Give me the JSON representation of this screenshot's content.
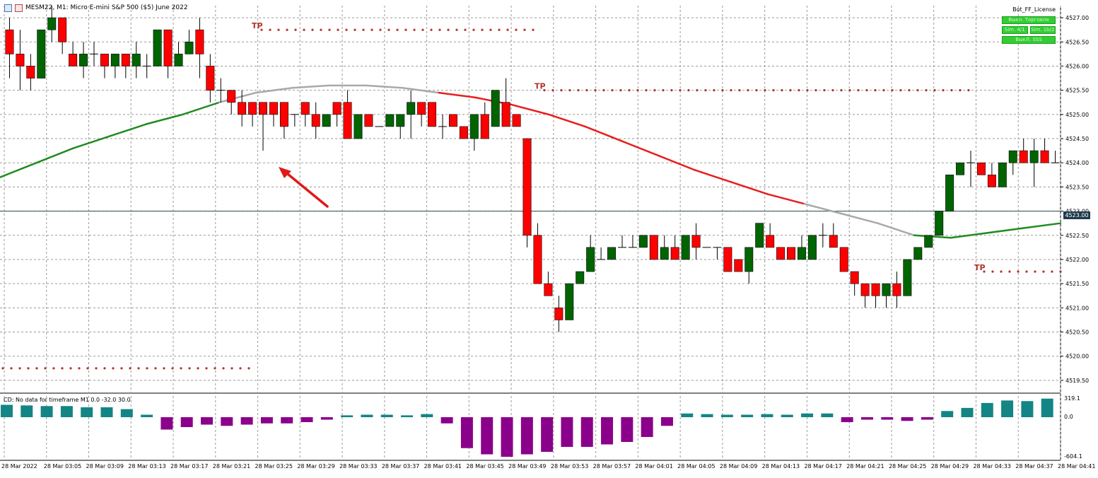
{
  "window": {
    "title": "MESM22, M1:  Micro E-mini S&P 500 ($5) June 2022"
  },
  "panel": {
    "title": "Bot_FF_License",
    "btn_trade": "Выкл. Торговля",
    "btn_a": "Sim. 4/1",
    "btn_b": "Sim. 1b/2",
    "btn_sss": "ВыкЛ. SSS"
  },
  "indicator": {
    "label": "CD: No data for timeframe M1 0.0 -32.0 30.0",
    "scale_top": "319.1",
    "scale_zero": "0.0",
    "scale_bottom": "-604.1"
  },
  "current_price": "4523.00",
  "annotations": {
    "tp": "TP"
  },
  "colors": {
    "bull": "#006400",
    "bear": "#ff0000",
    "ma_green": "#228b22",
    "ma_red": "#e81e1e",
    "ma_gray": "#a9a9a9",
    "hist_pos": "#138585",
    "hist_neg": "#8b008b",
    "grid": "#9a9a9a"
  },
  "chart_data": {
    "type": "candlestick",
    "symbol": "MESM22",
    "timeframe": "M1",
    "ylim": [
      4519.25,
      4527.25
    ],
    "price_ticks": [
      "4527.00",
      "4526.50",
      "4526.00",
      "4525.50",
      "4525.00",
      "4524.50",
      "4524.00",
      "4523.50",
      "4523.00",
      "4522.50",
      "4522.00",
      "4521.50",
      "4521.00",
      "4520.50",
      "4520.00",
      "4519.50"
    ],
    "time_ticks": [
      "28 Mar 2022",
      "28 Mar 03:05",
      "28 Mar 03:09",
      "28 Mar 03:13",
      "28 Mar 03:17",
      "28 Mar 03:21",
      "28 Mar 03:25",
      "28 Mar 03:29",
      "28 Mar 03:33",
      "28 Mar 03:37",
      "28 Mar 03:41",
      "28 Mar 03:45",
      "28 Mar 03:49",
      "28 Mar 03:53",
      "28 Mar 03:57",
      "28 Mar 04:01",
      "28 Mar 04:05",
      "28 Mar 04:09",
      "28 Mar 04:13",
      "28 Mar 04:17",
      "28 Mar 04:21",
      "28 Mar 04:25",
      "28 Mar 04:29",
      "28 Mar 04:33",
      "28 Mar 04:37",
      "28 Mar 04:41"
    ],
    "candles": [
      [
        4526.75,
        4527.0,
        4525.75,
        4526.25
      ],
      [
        4526.25,
        4526.75,
        4525.5,
        4526.0
      ],
      [
        4526.0,
        4526.25,
        4525.5,
        4525.75
      ],
      [
        4525.75,
        4526.75,
        4525.75,
        4526.75
      ],
      [
        4526.75,
        4527.25,
        4526.5,
        4527.0
      ],
      [
        4527.0,
        4527.0,
        4526.25,
        4526.5
      ],
      [
        4526.25,
        4526.5,
        4526.0,
        4526.0
      ],
      [
        4526.0,
        4526.5,
        4525.75,
        4526.25
      ],
      [
        4526.25,
        4526.5,
        4526.0,
        4526.25
      ],
      [
        4526.25,
        4526.25,
        4525.75,
        4526.0
      ],
      [
        4526.0,
        4526.25,
        4525.75,
        4526.25
      ],
      [
        4526.25,
        4526.25,
        4525.75,
        4526.0
      ],
      [
        4526.0,
        4526.5,
        4525.75,
        4526.25
      ],
      [
        4526.0,
        4526.25,
        4525.75,
        4526.0
      ],
      [
        4526.0,
        4526.75,
        4526.0,
        4526.75
      ],
      [
        4526.75,
        4526.75,
        4525.75,
        4526.0
      ],
      [
        4526.0,
        4526.5,
        4526.0,
        4526.25
      ],
      [
        4526.25,
        4526.75,
        4526.25,
        4526.5
      ],
      [
        4526.75,
        4527.0,
        4525.75,
        4526.25
      ],
      [
        4526.0,
        4526.25,
        4525.25,
        4525.5
      ],
      [
        4525.5,
        4525.75,
        4525.25,
        4525.5
      ],
      [
        4525.5,
        4525.5,
        4525.0,
        4525.25
      ],
      [
        4525.25,
        4525.5,
        4524.75,
        4525.0
      ],
      [
        4525.25,
        4525.25,
        4524.75,
        4525.0
      ],
      [
        4525.25,
        4525.25,
        4524.25,
        4525.0
      ],
      [
        4525.25,
        4525.25,
        4524.75,
        4525.0
      ],
      [
        4525.25,
        4525.25,
        4524.5,
        4524.75
      ],
      [
        4525.0,
        4525.0,
        4524.75,
        4525.0
      ],
      [
        4525.25,
        4525.25,
        4524.75,
        4525.0
      ],
      [
        4525.0,
        4525.25,
        4524.5,
        4524.75
      ],
      [
        4524.75,
        4525.0,
        4524.75,
        4525.0
      ],
      [
        4525.25,
        4525.25,
        4524.75,
        4525.0
      ],
      [
        4525.25,
        4525.5,
        4524.5,
        4524.5
      ],
      [
        4524.5,
        4525.0,
        4524.5,
        4525.0
      ],
      [
        4525.0,
        4525.0,
        4524.75,
        4524.75
      ],
      [
        4524.75,
        4524.75,
        4524.75,
        4524.75
      ],
      [
        4524.75,
        4525.0,
        4524.75,
        4525.0
      ],
      [
        4524.75,
        4525.0,
        4524.5,
        4525.0
      ],
      [
        4525.0,
        4525.5,
        4524.5,
        4525.25
      ],
      [
        4525.25,
        4525.25,
        4524.75,
        4525.0
      ],
      [
        4525.25,
        4525.25,
        4524.75,
        4524.75
      ],
      [
        4524.75,
        4525.0,
        4524.5,
        4524.75
      ],
      [
        4525.0,
        4525.0,
        4524.75,
        4524.75
      ],
      [
        4524.75,
        4524.75,
        4524.5,
        4524.5
      ],
      [
        4524.5,
        4525.0,
        4524.25,
        4525.0
      ],
      [
        4525.0,
        4525.25,
        4524.5,
        4524.5
      ],
      [
        4524.75,
        4525.5,
        4524.75,
        4525.5
      ],
      [
        4525.25,
        4525.75,
        4524.75,
        4524.75
      ],
      [
        4525.0,
        4525.0,
        4524.75,
        4524.75
      ],
      [
        4524.5,
        4524.5,
        4522.25,
        4522.5
      ],
      [
        4522.5,
        4522.75,
        4521.5,
        4521.5
      ],
      [
        4521.5,
        4521.75,
        4521.25,
        4521.25
      ],
      [
        4521.0,
        4521.25,
        4520.5,
        4520.75
      ],
      [
        4520.75,
        4521.5,
        4520.75,
        4521.5
      ],
      [
        4521.5,
        4521.75,
        4521.5,
        4521.75
      ],
      [
        4521.75,
        4522.5,
        4521.75,
        4522.25
      ],
      [
        4522.0,
        4522.25,
        4522.0,
        4522.0
      ],
      [
        4522.0,
        4522.25,
        4522.0,
        4522.25
      ],
      [
        4522.25,
        4522.5,
        4522.25,
        4522.25
      ],
      [
        4522.25,
        4522.5,
        4522.25,
        4522.25
      ],
      [
        4522.25,
        4522.5,
        4522.25,
        4522.5
      ],
      [
        4522.5,
        4522.5,
        4522.0,
        4522.0
      ],
      [
        4522.0,
        4522.5,
        4522.0,
        4522.25
      ],
      [
        4522.25,
        4522.5,
        4522.0,
        4522.0
      ],
      [
        4522.0,
        4522.5,
        4522.0,
        4522.5
      ],
      [
        4522.5,
        4522.75,
        4522.0,
        4522.25
      ],
      [
        4522.25,
        4522.25,
        4522.25,
        4522.25
      ],
      [
        4522.25,
        4522.25,
        4522.0,
        4522.25
      ],
      [
        4522.25,
        4522.25,
        4521.75,
        4521.75
      ],
      [
        4522.0,
        4522.0,
        4521.75,
        4521.75
      ],
      [
        4521.75,
        4522.25,
        4521.5,
        4522.25
      ],
      [
        4522.25,
        4522.75,
        4522.25,
        4522.75
      ],
      [
        4522.5,
        4522.75,
        4522.25,
        4522.25
      ],
      [
        4522.25,
        4522.25,
        4522.0,
        4522.0
      ],
      [
        4522.25,
        4522.25,
        4522.0,
        4522.0
      ],
      [
        4522.0,
        4522.5,
        4522.0,
        4522.25
      ],
      [
        4522.0,
        4522.5,
        4522.0,
        4522.5
      ],
      [
        4522.5,
        4522.75,
        4522.25,
        4522.5
      ],
      [
        4522.5,
        4522.75,
        4522.25,
        4522.25
      ],
      [
        4522.25,
        4522.25,
        4521.75,
        4521.75
      ],
      [
        4521.75,
        4521.75,
        4521.25,
        4521.5
      ],
      [
        4521.5,
        4521.5,
        4521.0,
        4521.25
      ],
      [
        4521.5,
        4521.5,
        4521.0,
        4521.25
      ],
      [
        4521.25,
        4521.5,
        4521.0,
        4521.5
      ],
      [
        4521.5,
        4521.75,
        4521.0,
        4521.25
      ],
      [
        4521.25,
        4522.0,
        4521.25,
        4522.0
      ],
      [
        4522.0,
        4522.25,
        4522.0,
        4522.25
      ],
      [
        4522.25,
        4522.5,
        4522.25,
        4522.5
      ],
      [
        4522.5,
        4523.0,
        4522.5,
        4523.0
      ],
      [
        4523.0,
        4523.75,
        4523.0,
        4523.75
      ],
      [
        4523.75,
        4524.0,
        4523.75,
        4524.0
      ],
      [
        4524.0,
        4524.25,
        4523.5,
        4524.0
      ],
      [
        4524.0,
        4524.0,
        4523.75,
        4523.75
      ],
      [
        4523.75,
        4524.0,
        4523.5,
        4523.5
      ],
      [
        4523.5,
        4524.0,
        4523.5,
        4524.0
      ],
      [
        4524.0,
        4524.25,
        4523.75,
        4524.25
      ],
      [
        4524.25,
        4524.5,
        4524.0,
        4524.0
      ],
      [
        4524.0,
        4524.5,
        4523.5,
        4524.25
      ],
      [
        4524.25,
        4524.5,
        4524.0,
        4524.0
      ],
      [
        4524.0,
        4524.25,
        4524.0,
        4524.0
      ]
    ],
    "moving_average": [
      4523.7,
      4524.0,
      4524.3,
      4524.55,
      4524.8,
      4525.0,
      4525.25,
      4525.45,
      4525.55,
      4525.6,
      4525.6,
      4525.55,
      4525.45,
      4525.35,
      4525.2,
      4525.0,
      4524.75,
      4524.45,
      4524.15,
      4523.85,
      4523.6,
      4523.35,
      4523.15,
      4522.95,
      4522.75,
      4522.5,
      4522.45,
      4522.55,
      4522.65,
      4522.75
    ],
    "histogram": [
      20,
      19,
      18,
      18,
      16,
      16,
      13,
      4,
      -10,
      -8,
      -6,
      -7,
      -6,
      -5,
      -5,
      -4,
      -2,
      3,
      4,
      4,
      3,
      5,
      -5,
      -25,
      -30,
      -32,
      -30,
      -28,
      -24,
      -24,
      -22,
      -20,
      -16,
      -7,
      6,
      5,
      4,
      4,
      5,
      4,
      6,
      6,
      -4,
      -2,
      -2,
      -3,
      -2,
      10,
      15,
      23,
      27,
      26,
      30
    ],
    "tp_levels": [
      4526.75,
      4525.5,
      4521.75
    ],
    "stop_levels": [
      4519.75
    ]
  }
}
